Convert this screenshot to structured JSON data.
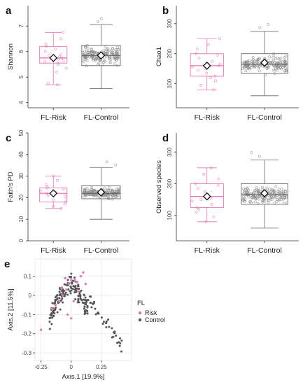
{
  "figure": {
    "colors": {
      "risk": "#e377b7",
      "control": "#555555",
      "diamond_fill": "#ffffff",
      "diamond_stroke": "#111111"
    }
  },
  "chart_data": [
    {
      "panel": "a",
      "type": "box",
      "ylabel": "Shannon",
      "ylim": [
        3.8,
        7.8
      ],
      "yticks": [
        4,
        5,
        6,
        7
      ],
      "categories": [
        "FL-Risk",
        "FL-Control"
      ],
      "series": [
        {
          "name": "FL-Risk",
          "min": 4.7,
          "q1": 5.55,
          "median": 5.75,
          "q3": 6.2,
          "max": 6.75,
          "mean": 5.75,
          "points": [
            4.7,
            4.75,
            5.2,
            5.35,
            5.5,
            5.55,
            5.6,
            5.65,
            5.7,
            5.75,
            5.8,
            5.85,
            5.9,
            6.0,
            6.1,
            6.2,
            6.3,
            6.5,
            6.75
          ]
        },
        {
          "name": "FL-Control",
          "min": 4.55,
          "q1": 5.45,
          "median": 5.85,
          "q3": 6.25,
          "max": 7.05,
          "mean": 5.85,
          "n": 170
        }
      ]
    },
    {
      "panel": "b",
      "type": "box",
      "ylabel": "Chao1",
      "ylim": [
        20,
        360
      ],
      "yticks": [
        100,
        200,
        300
      ],
      "categories": [
        "FL-Risk",
        "FL-Control"
      ],
      "series": [
        {
          "name": "FL-Risk",
          "min": 80,
          "q1": 125,
          "median": 160,
          "q3": 200,
          "max": 250,
          "mean": 160,
          "points": [
            80,
            95,
            110,
            120,
            125,
            135,
            145,
            150,
            155,
            160,
            165,
            175,
            185,
            195,
            200,
            215,
            230,
            250
          ]
        },
        {
          "name": "FL-Control",
          "min": 60,
          "q1": 135,
          "median": 165,
          "q3": 200,
          "max": 275,
          "mean": 170,
          "n": 170
        }
      ]
    },
    {
      "panel": "c",
      "type": "box",
      "ylabel": "Faith's PD",
      "ylim": [
        0,
        50
      ],
      "yticks": [
        0,
        10,
        20,
        30,
        40,
        50
      ],
      "categories": [
        "FL-Risk",
        "FL-Control"
      ],
      "series": [
        {
          "name": "FL-Risk",
          "min": 15,
          "q1": 18,
          "median": 22,
          "q3": 24.5,
          "max": 30,
          "mean": 22,
          "points": [
            15,
            16,
            17,
            18,
            19,
            20,
            21,
            21.5,
            22,
            22.5,
            23,
            24,
            24.5,
            25,
            26,
            28,
            30
          ]
        },
        {
          "name": "FL-Control",
          "min": 10,
          "q1": 19.5,
          "median": 22,
          "q3": 25.5,
          "max": 34,
          "mean": 22.5,
          "n": 170
        }
      ]
    },
    {
      "panel": "d",
      "type": "box",
      "ylabel": "Observed species",
      "ylim": [
        20,
        360
      ],
      "yticks": [
        100,
        200,
        300
      ],
      "categories": [
        "FL-Risk",
        "FL-Control"
      ],
      "series": [
        {
          "name": "FL-Risk",
          "min": 80,
          "q1": 125,
          "median": 160,
          "q3": 200,
          "max": 250,
          "mean": 160,
          "points": [
            80,
            95,
            110,
            120,
            125,
            135,
            145,
            150,
            155,
            160,
            165,
            175,
            185,
            195,
            200,
            215,
            230,
            250
          ]
        },
        {
          "name": "FL-Control",
          "min": 60,
          "q1": 135,
          "median": 165,
          "q3": 200,
          "max": 275,
          "mean": 170,
          "n": 170
        }
      ]
    },
    {
      "panel": "e",
      "type": "scatter",
      "xlabel": "Axis.1   [19.9%]",
      "ylabel": "Axis.2   [11.5%]",
      "xlim": [
        -0.3,
        0.5
      ],
      "ylim": [
        -0.34,
        0.19
      ],
      "xticks": [
        -0.25,
        0,
        0.25
      ],
      "xticklabels": [
        "-0.25",
        "0",
        "0.25"
      ],
      "yticks": [
        -0.3,
        -0.2,
        -0.1,
        0,
        0.1
      ],
      "yticklabels": [
        "-0.3",
        "-0.2",
        "-0.1",
        "0",
        "0.1"
      ],
      "grid": true,
      "legend": {
        "title": "FL",
        "position": "right",
        "entries": [
          "Risk",
          "Control"
        ]
      },
      "series": [
        {
          "name": "Risk",
          "points": [
            [
              -0.25,
              -0.18
            ],
            [
              -0.16,
              -0.07
            ],
            [
              -0.13,
              -0.05
            ],
            [
              -0.1,
              -0.03
            ],
            [
              -0.07,
              0.0
            ],
            [
              -0.04,
              0.03
            ],
            [
              -0.02,
              0.06
            ],
            [
              0.0,
              0.08
            ],
            [
              0.03,
              0.08
            ],
            [
              0.05,
              0.07
            ],
            [
              0.08,
              0.1
            ],
            [
              0.1,
              0.12
            ],
            [
              0.12,
              0.06
            ],
            [
              -0.05,
              0.09
            ],
            [
              -0.08,
              0.04
            ],
            [
              0.02,
              -0.03
            ],
            [
              0.06,
              0.02
            ],
            [
              -0.03,
              -0.1
            ],
            [
              0.0,
              -0.12
            ]
          ]
        },
        {
          "name": "Control",
          "n": 190
        }
      ]
    }
  ]
}
